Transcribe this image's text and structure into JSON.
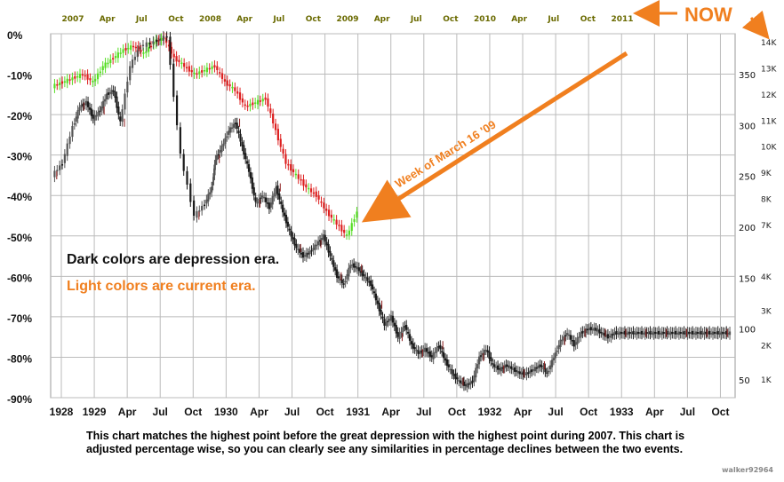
{
  "chart_data": {
    "type": "line",
    "title": "",
    "left_axis": {
      "ticks": [
        "0%",
        "-10%",
        "-20%",
        "-30%",
        "-40%",
        "-50%",
        "-60%",
        "-70%",
        "-80%",
        "-90%"
      ],
      "values": [
        0,
        -10,
        -20,
        -30,
        -40,
        -50,
        -60,
        -70,
        -80,
        -90
      ],
      "ylim": [
        0,
        -90
      ]
    },
    "right_axis_depression": {
      "ticks": [
        "350",
        "300",
        "250",
        "200",
        "150",
        "100",
        "50"
      ],
      "values": [
        350,
        300,
        250,
        200,
        150,
        100,
        50
      ]
    },
    "right_axis_current": {
      "ticks": [
        "14K",
        "13K",
        "12K",
        "11K",
        "10K",
        "9K",
        "8K",
        "7K",
        "4K",
        "3K",
        "2K",
        "1K"
      ],
      "values": [
        14000,
        13000,
        12000,
        11000,
        10000,
        9000,
        8000,
        7000,
        4000,
        3000,
        2000,
        1000
      ]
    },
    "bottom_axis_labels": [
      "1928",
      "1929",
      "Apr",
      "Jul",
      "Oct",
      "1930",
      "Apr",
      "Jul",
      "Oct",
      "1931",
      "Apr",
      "Jul",
      "Oct",
      "1932",
      "Apr",
      "Jul",
      "Oct",
      "1933",
      "Apr",
      "Jul",
      "Oct"
    ],
    "top_axis_labels": [
      "2007",
      "Apr",
      "Jul",
      "Oct",
      "2008",
      "Apr",
      "Jul",
      "Oct",
      "2009",
      "Apr",
      "Jul",
      "Oct",
      "2010",
      "Apr",
      "Jul",
      "Oct",
      "2011"
    ],
    "grid": true,
    "series": [
      {
        "name": "Dark colors are depression era.",
        "color": "#1a1a1a",
        "x": [
          0,
          3,
          6,
          8,
          10,
          12,
          14,
          16,
          18,
          20,
          23,
          26,
          30,
          34,
          38,
          42,
          45,
          47,
          48,
          50,
          52,
          54,
          56,
          58,
          60,
          62,
          64,
          66,
          68,
          70,
          72,
          74,
          76,
          78,
          80,
          82,
          84,
          86,
          88,
          90,
          92,
          94,
          96,
          98,
          100,
          102,
          104,
          106,
          108,
          110,
          112,
          114,
          116,
          118,
          120,
          122,
          124,
          126,
          128,
          130,
          132,
          134,
          136,
          138,
          140,
          142,
          144,
          146,
          148,
          150,
          152,
          154,
          156,
          158,
          160,
          162,
          164,
          166,
          168,
          170,
          172,
          174,
          176,
          178,
          180,
          182,
          184,
          186,
          188,
          190,
          192,
          194,
          196,
          198,
          200
        ],
        "values": [
          -35,
          -32,
          -23,
          -18,
          -17,
          -21,
          -19,
          -15,
          -14,
          -22,
          -8,
          -3,
          -2,
          -0.5,
          -30,
          -45,
          -42,
          -38,
          -31,
          -28,
          -24,
          -22,
          -28,
          -34,
          -42,
          -40,
          -43,
          -38,
          -44,
          -49,
          -53,
          -55,
          -54,
          -52,
          -50,
          -55,
          -60,
          -62,
          -57,
          -58,
          -60,
          -62,
          -67,
          -72,
          -70,
          -75,
          -72,
          -77,
          -79,
          -78,
          -80,
          -77,
          -81,
          -84,
          -86,
          -87,
          -86,
          -80,
          -78,
          -82,
          -83,
          -82,
          -83,
          -84,
          -84,
          -83,
          -82,
          -84,
          -80,
          -76,
          -74,
          -77,
          -74,
          -73,
          -73,
          -74,
          -75,
          -74,
          -74,
          -74,
          -74,
          -74,
          -74,
          -74,
          -74,
          -74,
          -74,
          -74,
          -74,
          -74,
          -74,
          -74,
          -74,
          -74,
          -74
        ]
      },
      {
        "name": "Light colors are current era.",
        "color": "#44cc22",
        "x": [
          0,
          3,
          6,
          9,
          12,
          15,
          18,
          21,
          24,
          27,
          30,
          33,
          36,
          39,
          42,
          45,
          48,
          51,
          54,
          57,
          60,
          63,
          66,
          69,
          72,
          75,
          78,
          81,
          84,
          87,
          90
        ],
        "values": [
          -13,
          -12,
          -11,
          -10,
          -12,
          -8,
          -6,
          -4,
          -3,
          -5,
          -2,
          -1,
          -6,
          -8,
          -10,
          -9,
          -8,
          -12,
          -14,
          -18,
          -17,
          -16,
          -24,
          -32,
          -35,
          -38,
          -40,
          -44,
          -47,
          -50,
          -44
        ]
      }
    ],
    "annotations": [
      {
        "text": "Week of March 16 '09"
      },
      {
        "text": "NOW"
      }
    ]
  },
  "legend": {
    "dark": "Dark colors are depression era.",
    "light": "Light colors are current era."
  },
  "annotation_week": "Week of March 16 '09",
  "annotation_now": "NOW",
  "caption": "This chart matches the highest point before the great depression with the highest point during 2007. This chart is adjusted percentage wise, so you can clearly see any similarities in percentage declines between the two events.",
  "credit": "walker92964",
  "colors": {
    "orange": "#f07f1f",
    "grid": "#bbbbbb",
    "up_current": "#55dd22",
    "down_current": "#dd1f1f",
    "dark": "#1a1a1a"
  }
}
